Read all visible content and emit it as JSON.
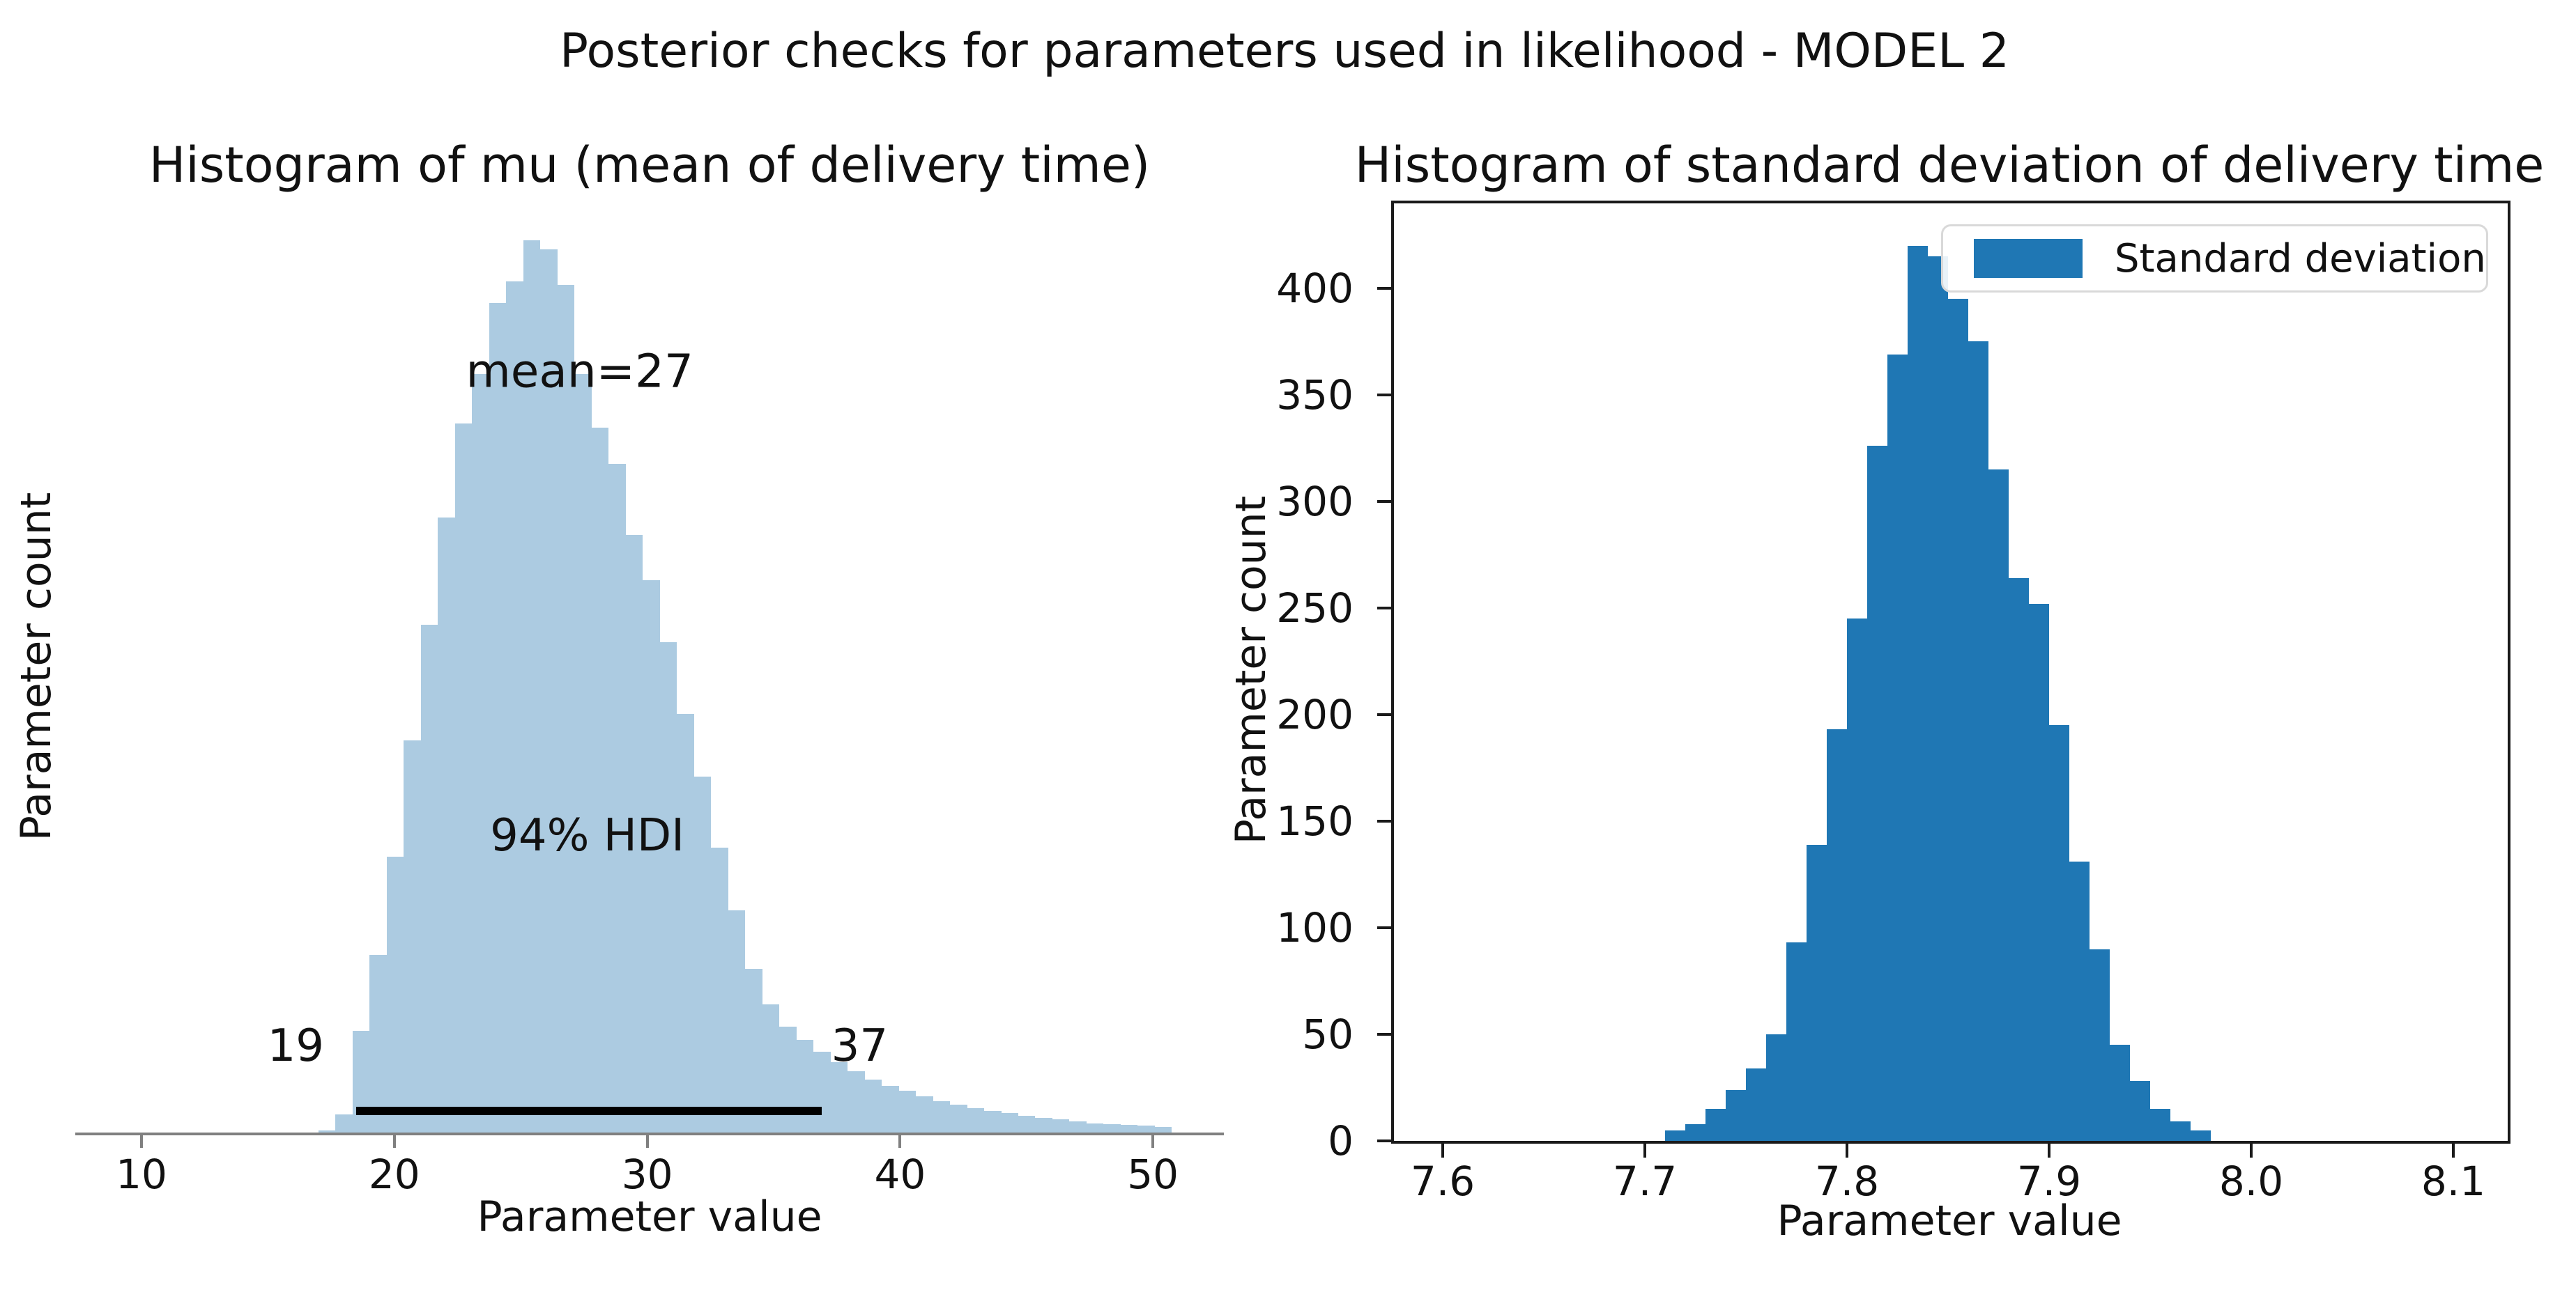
{
  "figure": {
    "suptitle": "Posterior checks for parameters used in likelihood - MODEL 2",
    "background": "#ffffff"
  },
  "chart_data": [
    {
      "id": "mu",
      "type": "bar",
      "subtype": "histogram",
      "title": "Histogram of mu (mean of delivery time)",
      "xlabel": "Parameter value",
      "ylabel": "Parameter count",
      "bar_color": "#accbe1",
      "spine_color": "#808080",
      "grid": false,
      "xlim": [
        7.4,
        52.8
      ],
      "xticks": [
        "10",
        "20",
        "30",
        "40",
        "50"
      ],
      "xtick_values": [
        10,
        20,
        30,
        40,
        50
      ],
      "yticks": [],
      "y_axis_note": "no y tick labels shown; heights normalized to peak = 1.0",
      "bin_start": 17.0,
      "bin_width": 0.675,
      "counts_normalized": [
        0.004,
        0.022,
        0.115,
        0.2,
        0.31,
        0.44,
        0.57,
        0.69,
        0.795,
        0.85,
        0.93,
        0.954,
        1.0,
        0.99,
        0.95,
        0.85,
        0.79,
        0.75,
        0.67,
        0.62,
        0.55,
        0.47,
        0.4,
        0.32,
        0.25,
        0.185,
        0.145,
        0.12,
        0.105,
        0.092,
        0.08,
        0.07,
        0.061,
        0.054,
        0.048,
        0.042,
        0.037,
        0.033,
        0.029,
        0.026,
        0.023,
        0.02,
        0.018,
        0.016,
        0.014,
        0.012,
        0.011,
        0.01,
        0.009,
        0.008
      ],
      "annotations": {
        "mean_label": "mean=27",
        "mean_label_x": 27.33,
        "hdi_label": "94% HDI",
        "hdi_label_x": 27.63,
        "hdi_lower_label": "19",
        "hdi_lower_label_x": 16.1,
        "hdi_upper_label": "37",
        "hdi_upper_label_x": 38.4,
        "hdi_interval": [
          18.5,
          36.9
        ],
        "hdi_line_color": "#000000"
      }
    },
    {
      "id": "sd",
      "type": "bar",
      "subtype": "histogram",
      "title": "Histogram of standard deviation of delivery time",
      "xlabel": "Parameter value",
      "ylabel": "Parameter count",
      "bar_color": "#1f77b4",
      "spine_color": "#1a1a1a",
      "grid": false,
      "xlim": [
        7.574,
        8.127
      ],
      "ylim": [
        0,
        441
      ],
      "xticks": [
        "7.6",
        "7.7",
        "7.8",
        "7.9",
        "8.0",
        "8.1"
      ],
      "xtick_values": [
        7.6,
        7.7,
        7.8,
        7.9,
        8.0,
        8.1
      ],
      "yticks": [
        "0",
        "50",
        "100",
        "150",
        "200",
        "250",
        "300",
        "350",
        "400"
      ],
      "ytick_values": [
        0,
        50,
        100,
        150,
        200,
        250,
        300,
        350,
        400
      ],
      "bin_start": 7.71,
      "bin_width": 0.01,
      "counts": [
        5,
        8,
        15,
        24,
        34,
        50,
        93,
        139,
        193,
        245,
        326,
        369,
        420,
        415,
        395,
        375,
        315,
        264,
        252,
        195,
        131,
        90,
        45,
        28,
        15,
        9,
        5
      ],
      "legend": {
        "label": "Standard deviation",
        "patch_color": "#1f77b4",
        "position": "upper right"
      }
    }
  ]
}
